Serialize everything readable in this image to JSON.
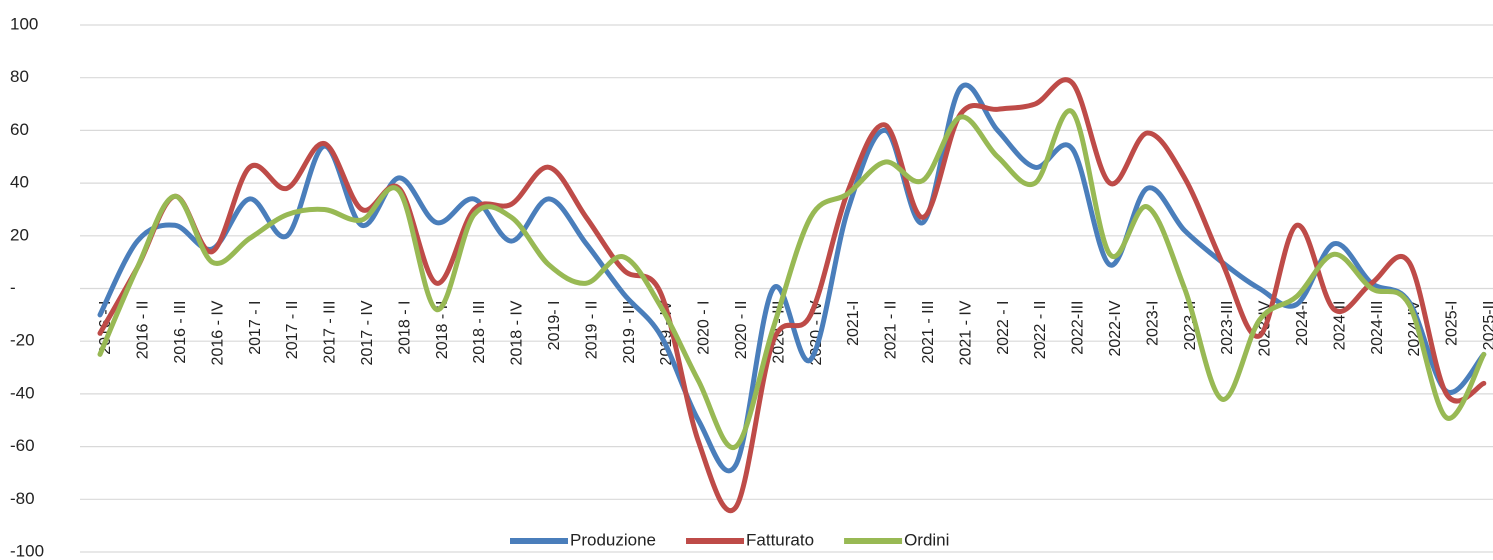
{
  "chart_data": {
    "type": "line",
    "categories": [
      "2016 - I",
      "2016 - II",
      "2016 - III",
      "2016 - IV",
      "2017 - I",
      "2017 - II",
      "2017 - III",
      "2017 - IV",
      "2018 - I",
      "2018 - II",
      "2018 - III",
      "2018 - IV",
      "2019- I",
      "2019 - II",
      "2019 - III",
      "2019 - IV",
      "2020 - I",
      "2020 - II",
      "2020 - III",
      "2020 - IV",
      "2021-I",
      "2021 - II",
      "2021 - III",
      "2021 - IV",
      "2022 - I",
      "2022 - II",
      "2022-III",
      "2022-IV",
      "2023-I",
      "2023-II",
      "2023-III",
      "2023-IV",
      "2024-I",
      "2024-II",
      "2024-III",
      "2024-IV",
      "2025-I",
      "2025-II"
    ],
    "series": [
      {
        "name": "Produzione",
        "color": "#4a7ebb",
        "values": [
          -10,
          18,
          24,
          15,
          34,
          20,
          54,
          24,
          42,
          25,
          34,
          18,
          34,
          17,
          -2,
          -18,
          -50,
          -67,
          0,
          -27,
          30,
          60,
          25,
          76,
          60,
          46,
          53,
          9,
          38,
          22,
          10,
          0,
          -6,
          17,
          2,
          -5,
          -39,
          -25
        ]
      },
      {
        "name": "Fatturato",
        "color": "#be4b48",
        "values": [
          -17,
          8,
          35,
          14,
          46,
          38,
          55,
          30,
          38,
          2,
          30,
          32,
          46,
          27,
          7,
          -2,
          -58,
          -83,
          -20,
          -10,
          37,
          62,
          27,
          66,
          68,
          70,
          78,
          40,
          59,
          42,
          10,
          -18,
          24,
          -8,
          2,
          10,
          -40,
          -36
        ]
      },
      {
        "name": "Ordini",
        "color": "#98b954",
        "values": [
          -25,
          8,
          35,
          10,
          19,
          28,
          30,
          26,
          37,
          -8,
          28,
          27,
          9,
          2,
          12,
          -7,
          -35,
          -60,
          -15,
          27,
          36,
          48,
          41,
          65,
          50,
          40,
          67,
          13,
          31,
          0,
          -42,
          -12,
          -3,
          13,
          0,
          -6,
          -49,
          -25
        ]
      }
    ],
    "ylim": [
      -100,
      100
    ],
    "yticks": [
      -100,
      -80,
      -60,
      -40,
      -20,
      {
        "value": 0,
        "label": "-"
      },
      20,
      40,
      60,
      80,
      100
    ],
    "grid": true,
    "legend": "bottom"
  }
}
